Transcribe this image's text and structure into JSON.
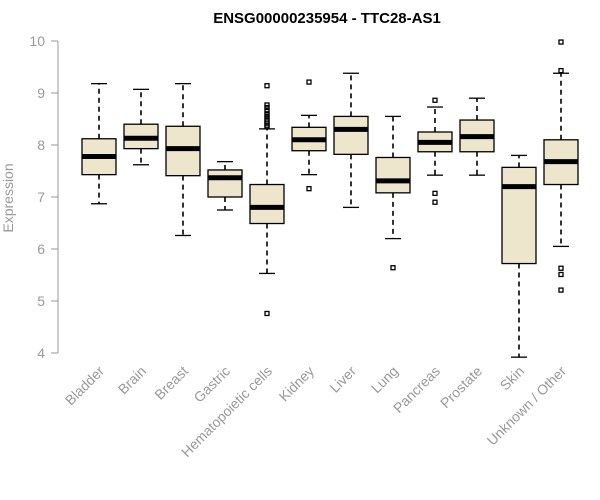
{
  "chart_data": {
    "type": "boxplot",
    "title": "ENSG00000235954 - TTC28-AS1",
    "ylabel": "Expression",
    "xlabel": "",
    "ylim": [
      4,
      10
    ],
    "yticks": [
      4,
      5,
      6,
      7,
      8,
      9,
      10
    ],
    "colors": {
      "box_fill": "#ede6cc",
      "stroke": "#000000",
      "axis": "#999999"
    },
    "categories": [
      "Bladder",
      "Brain",
      "Breast",
      "Gastric",
      "Hematopoietic cells",
      "Kidney",
      "Liver",
      "Lung",
      "Pancreas",
      "Prostate",
      "Skin",
      "Unknown / Other"
    ],
    "boxes": [
      {
        "name": "Bladder",
        "min": 6.87,
        "q1": 7.43,
        "median": 7.78,
        "q3": 8.12,
        "max": 9.18,
        "outliers": []
      },
      {
        "name": "Brain",
        "min": 7.62,
        "q1": 7.93,
        "median": 8.13,
        "q3": 8.4,
        "max": 9.07,
        "outliers": []
      },
      {
        "name": "Breast",
        "min": 6.26,
        "q1": 7.41,
        "median": 7.93,
        "q3": 8.36,
        "max": 9.18,
        "outliers": []
      },
      {
        "name": "Gastric",
        "min": 6.75,
        "q1": 7.0,
        "median": 7.37,
        "q3": 7.52,
        "max": 7.68,
        "outliers": []
      },
      {
        "name": "Hematopoietic cells",
        "min": 5.53,
        "q1": 6.49,
        "median": 6.8,
        "q3": 7.24,
        "max": 8.31,
        "outliers": [
          4.76,
          8.35,
          8.38,
          8.42,
          8.46,
          8.5,
          8.55,
          8.6,
          8.66,
          8.72,
          8.77,
          9.14
        ]
      },
      {
        "name": "Kidney",
        "min": 7.43,
        "q1": 7.89,
        "median": 8.1,
        "q3": 8.34,
        "max": 8.57,
        "outliers": [
          7.16,
          9.21
        ]
      },
      {
        "name": "Liver",
        "min": 6.8,
        "q1": 7.82,
        "median": 8.3,
        "q3": 8.55,
        "max": 9.38,
        "outliers": []
      },
      {
        "name": "Lung",
        "min": 6.2,
        "q1": 7.08,
        "median": 7.31,
        "q3": 7.76,
        "max": 8.55,
        "outliers": [
          5.64
        ]
      },
      {
        "name": "Pancreas",
        "min": 7.42,
        "q1": 7.87,
        "median": 8.05,
        "q3": 8.25,
        "max": 8.73,
        "outliers": [
          6.9,
          7.07,
          8.86
        ]
      },
      {
        "name": "Prostate",
        "min": 7.42,
        "q1": 7.87,
        "median": 8.16,
        "q3": 8.48,
        "max": 8.9,
        "outliers": []
      },
      {
        "name": "Skin",
        "min": 3.92,
        "q1": 5.72,
        "median": 7.2,
        "q3": 7.57,
        "max": 7.8,
        "outliers": []
      },
      {
        "name": "Unknown / Other",
        "min": 6.05,
        "q1": 7.24,
        "median": 7.68,
        "q3": 8.1,
        "max": 9.38,
        "outliers": [
          5.21,
          5.51,
          5.63,
          9.43,
          9.98
        ]
      }
    ]
  }
}
